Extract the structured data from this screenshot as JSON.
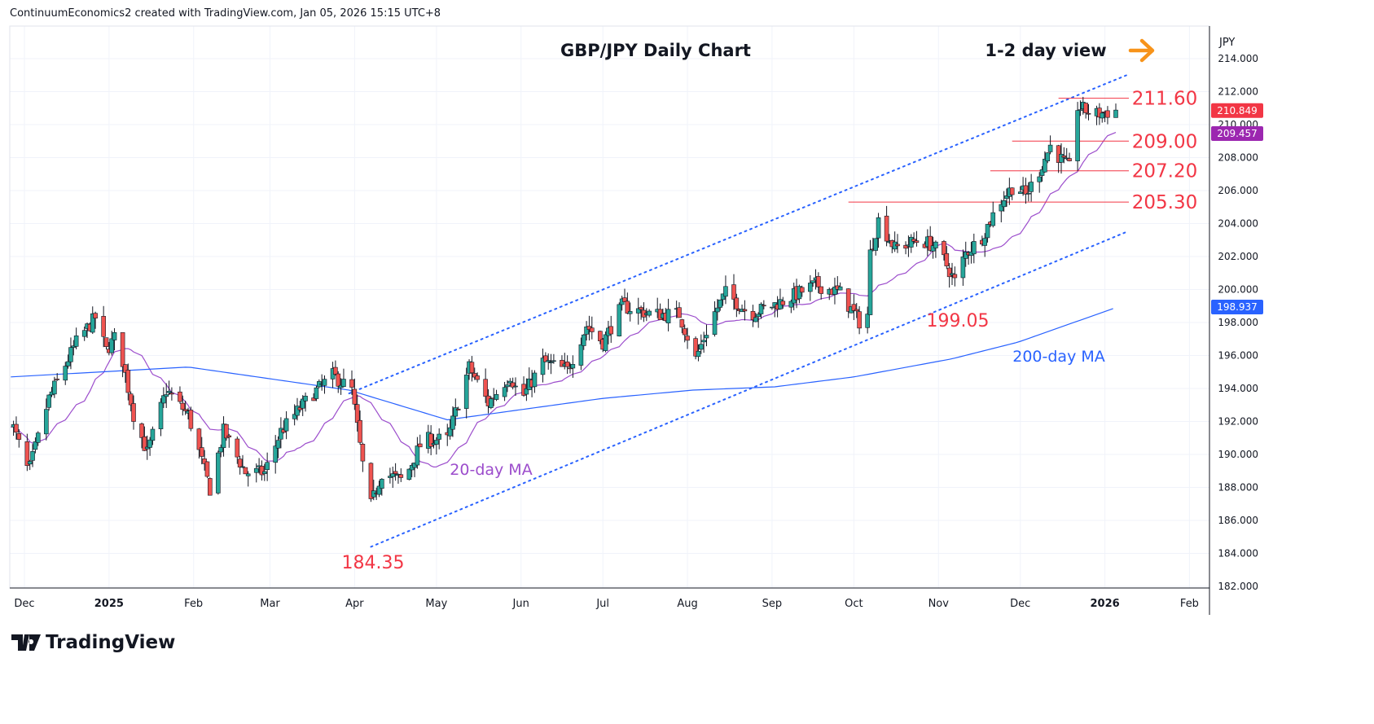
{
  "header": {
    "credit": "ContinuumEconomics2 created with TradingView.com, Jan 05, 2026 15:15 UTC+8"
  },
  "footer": {
    "brand": "TradingView"
  },
  "colors": {
    "up": "#26a69a",
    "down": "#ef5350",
    "ma20": "#9c4dcc",
    "ma200": "#2962ff",
    "level": "#f23645",
    "arrow": "#f7931a",
    "channel": "#2962ff"
  },
  "chart_data": {
    "type": "candlestick",
    "title": "GBP/JPY Daily Chart",
    "subtitle": "1-2 day view",
    "currency": "JPY",
    "day_origin": "2024-12-01",
    "note": "close path approximated by waypoints [days since origin, price]",
    "close_waypoints": [
      [
        -5,
        192.1
      ],
      [
        1.5,
        188.9
      ],
      [
        9,
        193.4
      ],
      [
        19,
        196.8
      ],
      [
        26,
        198.3
      ],
      [
        30,
        196.3
      ],
      [
        34,
        197.3
      ],
      [
        40,
        192.4
      ],
      [
        45,
        190.1
      ],
      [
        52,
        193.9
      ],
      [
        60,
        192.4
      ],
      [
        68,
        187.9
      ],
      [
        73,
        191.4
      ],
      [
        81,
        188.9
      ],
      [
        88,
        188.9
      ],
      [
        94,
        191.4
      ],
      [
        104,
        193.4
      ],
      [
        113,
        194.8
      ],
      [
        120,
        193.9
      ],
      [
        124,
        189.4
      ],
      [
        127,
        186.9
      ],
      [
        131,
        188.9
      ],
      [
        139,
        188.4
      ],
      [
        146,
        190.9
      ],
      [
        155,
        190.9
      ],
      [
        163,
        195.3
      ],
      [
        170,
        193.1
      ],
      [
        178,
        194.8
      ],
      [
        182,
        193.3
      ],
      [
        190,
        195.6
      ],
      [
        199,
        195.1
      ],
      [
        206,
        197.8
      ],
      [
        212,
        196.8
      ],
      [
        219,
        199.0
      ],
      [
        230,
        198.5
      ],
      [
        240,
        198.5
      ],
      [
        246,
        195.8
      ],
      [
        252,
        198.3
      ],
      [
        257,
        199.8
      ],
      [
        266,
        198.5
      ],
      [
        278,
        199.3
      ],
      [
        290,
        200.3
      ],
      [
        299,
        199.8
      ],
      [
        307,
        197.8
      ],
      [
        309,
        198.5
      ],
      [
        310,
        202.2
      ],
      [
        313,
        204.2
      ],
      [
        319,
        202.5
      ],
      [
        328,
        203.0
      ],
      [
        333,
        202.7
      ],
      [
        337,
        201.8
      ],
      [
        341,
        200.5
      ],
      [
        345,
        202.2
      ],
      [
        351,
        203.2
      ],
      [
        357,
        205.2
      ],
      [
        363,
        206.4
      ],
      [
        367,
        205.7
      ],
      [
        372,
        207.2
      ],
      [
        376,
        208.7
      ],
      [
        381,
        207.7
      ],
      [
        384,
        207.2
      ],
      [
        386,
        211.1
      ],
      [
        392,
        210.6
      ],
      [
        400,
        210.85
      ]
    ],
    "ma200_waypoints": [
      [
        -5,
        194.7
      ],
      [
        60,
        195.3
      ],
      [
        119,
        193.9
      ],
      [
        155,
        192.1
      ],
      [
        212,
        193.4
      ],
      [
        245,
        193.9
      ],
      [
        275,
        194.1
      ],
      [
        304,
        194.7
      ],
      [
        340,
        195.8
      ],
      [
        364,
        196.8
      ],
      [
        400,
        198.9
      ]
    ],
    "channel_upper": [
      [
        119,
        193.7
      ],
      [
        404,
        213.0
      ]
    ],
    "channel_lower": [
      [
        127,
        184.4
      ],
      [
        404,
        203.5
      ]
    ],
    "ylim": [
      182,
      214.8
    ],
    "yticks": [
      "214.000",
      "212.000",
      "210.000",
      "208.000",
      "206.000",
      "204.000",
      "202.000",
      "200.000",
      "198.000",
      "196.000",
      "194.000",
      "192.000",
      "190.000",
      "188.000",
      "186.000",
      "184.000",
      "182.000"
    ],
    "xticks": [
      {
        "label": "Dec",
        "day": 0
      },
      {
        "label": "2025",
        "day": 31
      },
      {
        "label": "Feb",
        "day": 62
      },
      {
        "label": "Mar",
        "day": 90
      },
      {
        "label": "Apr",
        "day": 121
      },
      {
        "label": "May",
        "day": 151
      },
      {
        "label": "Jun",
        "day": 182
      },
      {
        "label": "Jul",
        "day": 212
      },
      {
        "label": "Aug",
        "day": 243
      },
      {
        "label": "Sep",
        "day": 274
      },
      {
        "label": "Oct",
        "day": 304
      },
      {
        "label": "Nov",
        "day": 335
      },
      {
        "label": "Dec",
        "day": 365
      },
      {
        "label": "2026",
        "day": 396
      },
      {
        "label": "Feb",
        "day": 427
      }
    ],
    "levels": [
      {
        "label": "211.60",
        "value": 211.6,
        "from_day": 379
      },
      {
        "label": "209.00",
        "value": 209.0,
        "from_day": 362
      },
      {
        "label": "207.20",
        "value": 207.2,
        "from_day": 354
      },
      {
        "label": "205.30",
        "value": 205.3,
        "from_day": 302
      }
    ],
    "annotations": [
      {
        "text": "184.35",
        "day": 128,
        "price": 184.35
      },
      {
        "text": "199.05",
        "day": 338,
        "price": 199.05
      },
      {
        "text": "20-day MA"
      },
      {
        "text": "200-day MA"
      }
    ],
    "price_badges": [
      {
        "label": "210.849",
        "value": 210.849,
        "color": "#f23645"
      },
      {
        "label": "209.457",
        "value": 209.457,
        "color": "#9c27b0"
      },
      {
        "label": "198.937",
        "value": 198.937,
        "color": "#2962ff"
      }
    ]
  }
}
